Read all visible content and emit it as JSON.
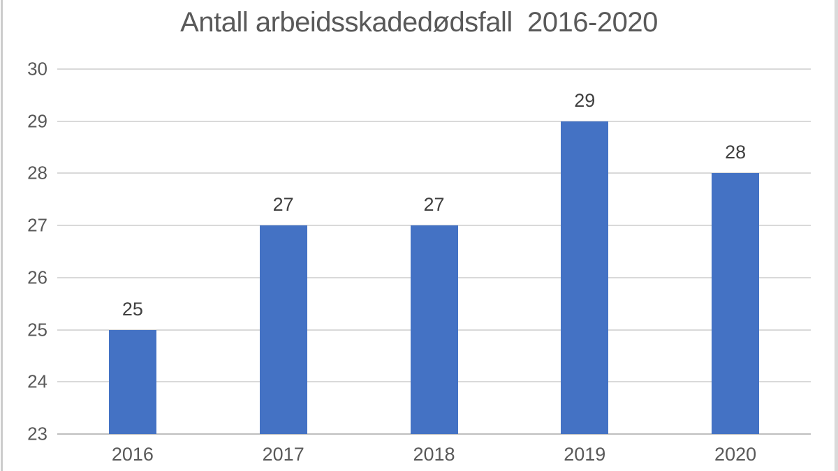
{
  "chart_data": {
    "type": "bar",
    "title": "Antall arbeidsskadedødsfall  2016-2020",
    "categories": [
      "2016",
      "2017",
      "2018",
      "2019",
      "2020"
    ],
    "values": [
      25,
      27,
      27,
      29,
      28
    ],
    "data_labels": [
      "25",
      "27",
      "27",
      "29",
      "28"
    ],
    "xlabel": "",
    "ylabel": "",
    "ylim": [
      23,
      30
    ],
    "yticks": [
      23,
      24,
      25,
      26,
      27,
      28,
      29,
      30
    ],
    "grid": "horizontal",
    "legend": "none",
    "colors": {
      "bar": "#4472c4",
      "gridline": "#d9d9d9",
      "axis_line": "#bfbfbf",
      "title_text": "#595959",
      "tick_text": "#595959",
      "data_label_text": "#404040"
    }
  }
}
